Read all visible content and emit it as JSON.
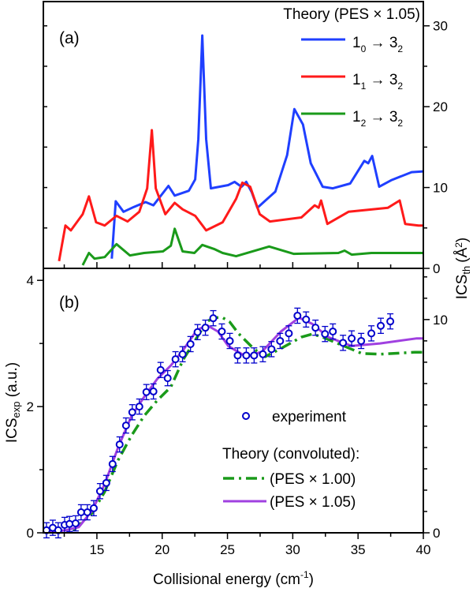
{
  "chart_data": [
    {
      "panel_label": "(a)",
      "type": "line",
      "xlabel": "",
      "ylabel_right": "ICS",
      "ylabel_right_sub": "th",
      "ylabel_right_unit": "(Å",
      "ylabel_right_unit_sup": "2",
      "ylabel_right_unit_close": ")",
      "xlim": [
        10.9,
        40
      ],
      "ylim_right": [
        0,
        33
      ],
      "yticks_right": [
        "0",
        "10",
        "20",
        "30"
      ],
      "legend_title": "Theory (PES × 1.05)",
      "legend_placement": "top-right",
      "series": [
        {
          "name": "1₀ → 3₂",
          "label_main": "1",
          "label_sub": "0",
          "label_arrow": "→ 3",
          "label_sub2": "2",
          "color": "#1f3fff",
          "x": [
            16.14,
            16.44,
            17.04,
            17.83,
            18.73,
            19.33,
            20.48,
            20.96,
            22.04,
            22.53,
            22.77,
            23.07,
            23.37,
            23.73,
            25.06,
            25.54,
            26.08,
            26.44,
            26.86,
            27.29,
            28.67,
            29.57,
            30.12,
            30.78,
            31.38,
            32.29,
            33.07,
            34.4,
            35.48,
            35.78,
            36.08,
            36.62,
            37.53,
            39.1,
            40
          ],
          "y": [
            1.2,
            8.3,
            7.0,
            7.6,
            8.2,
            7.8,
            10.2,
            9.0,
            9.6,
            11,
            16,
            28.8,
            16,
            9.9,
            10.3,
            10.7,
            10.1,
            10.7,
            9.4,
            7.5,
            9.5,
            14,
            19.7,
            17.8,
            13,
            10.1,
            9.9,
            10.5,
            13.3,
            13.0,
            13.9,
            10.1,
            10.9,
            11.9,
            12.0
          ]
        },
        {
          "name": "1₁ → 3₂",
          "label_main": "1",
          "label_sub": "1",
          "label_arrow": "→ 3",
          "label_sub2": "2",
          "color": "#ff1a1a",
          "x": [
            12.1,
            12.59,
            13.01,
            13.91,
            14.39,
            14.94,
            15.6,
            16.5,
            17.35,
            18.25,
            18.85,
            19.21,
            19.51,
            20.24,
            20.96,
            21.56,
            22.53,
            23.37,
            24.63,
            25.66,
            26.14,
            26.74,
            27.47,
            28.25,
            30.66,
            31.68,
            31.98,
            32.17,
            32.65,
            34.27,
            37.29,
            38.19,
            38.61,
            39.63,
            40
          ],
          "y": [
            0.9,
            5.3,
            4.7,
            6.7,
            8.9,
            5.7,
            5.3,
            6.5,
            5.8,
            7.0,
            9.9,
            17.1,
            9.9,
            6.7,
            8.1,
            7.3,
            6.5,
            4.7,
            5.7,
            8.6,
            10.6,
            10.1,
            6.7,
            5.8,
            6.3,
            7.8,
            7.5,
            8.4,
            5.5,
            7.0,
            7.5,
            8.4,
            5.5,
            5.3,
            5.3
          ]
        },
        {
          "name": "1₂ → 3₂",
          "label_main": "1",
          "label_sub": "2",
          "label_arrow": "→ 3",
          "label_sub2": "2",
          "color": "#1a9a1a",
          "x": [
            13.91,
            14.39,
            14.82,
            15.6,
            16.5,
            17.53,
            18.61,
            20.06,
            20.66,
            20.96,
            21.56,
            22.47,
            23.07,
            23.97,
            24.63,
            25.66,
            28.19,
            30.06,
            33.49,
            33.97,
            34.51,
            36.02,
            40
          ],
          "y": [
            0.4,
            1.9,
            1.2,
            1.4,
            3.0,
            1.6,
            1.9,
            2.1,
            2.8,
            4.9,
            2.1,
            1.9,
            2.9,
            2.4,
            1.9,
            1.5,
            2.7,
            1.8,
            1.9,
            2.2,
            1.7,
            1.9,
            1.9
          ]
        }
      ]
    },
    {
      "panel_label": "(b)",
      "type": "scatter+line",
      "xlabel": "Collisional energy (cm",
      "xlabel_sup": "-1",
      "xlabel_close": ")",
      "ylabel_left": "ICS",
      "ylabel_left_sub": "exp",
      "ylabel_left_unit": " (a.u.)",
      "xlim": [
        10.9,
        40
      ],
      "xticks": [
        "15",
        "20",
        "25",
        "30",
        "35",
        "40"
      ],
      "ylim_left": [
        0,
        4.19
      ],
      "yticks_left": [
        "0",
        "2",
        "4"
      ],
      "ylim_right": [
        0,
        12.4
      ],
      "yticks_right": [
        "0",
        "10"
      ],
      "legend_theory_title": "Theory (convoluted):",
      "legend_placement": "bottom-right",
      "experiment": {
        "name": "experiment",
        "color": "#0000cc",
        "x": [
          11.14,
          11.62,
          12.04,
          12.53,
          12.9,
          13.37,
          13.79,
          14.27,
          14.76,
          15.24,
          15.72,
          16.2,
          16.74,
          17.23,
          17.71,
          18.25,
          18.79,
          19.33,
          19.88,
          20.42,
          21.02,
          21.56,
          22.17,
          22.71,
          23.31,
          23.91,
          24.57,
          25.18,
          25.78,
          26.44,
          27.04,
          27.71,
          28.37,
          29.03,
          29.7,
          30.36,
          31.02,
          31.74,
          32.47,
          33.07,
          33.85,
          34.51,
          35.24,
          36.02,
          36.74,
          37.47
        ],
        "y": [
          0.04,
          0.08,
          0.04,
          0.125,
          0.14,
          0.15,
          0.325,
          0.325,
          0.39,
          0.66,
          0.79,
          1.09,
          1.4,
          1.7,
          1.91,
          2.0,
          2.23,
          2.24,
          2.58,
          2.45,
          2.75,
          2.83,
          2.99,
          3.18,
          3.25,
          3.4,
          3.19,
          3.04,
          2.81,
          2.81,
          2.81,
          2.83,
          2.91,
          3.04,
          3.16,
          3.44,
          3.38,
          3.25,
          3.15,
          3.19,
          3.01,
          3.08,
          3.04,
          3.16,
          3.28,
          3.35
        ],
        "yerr": 0.12
      },
      "series": [
        {
          "name": "(PES × 1.00)",
          "style": "dash-dot",
          "color": "#1a9a1a",
          "x": [
            13.19,
            14.63,
            15.6,
            16.62,
            17.65,
            18.61,
            19.63,
            20.66,
            21.62,
            22.65,
            23.43,
            24.03,
            24.63,
            25.18,
            25.84,
            27.04,
            27.89,
            29.27,
            30.66,
            31.5,
            32.29,
            33.91,
            35.3,
            36.68,
            39.33,
            40
          ],
          "y": [
            0.04,
            0.31,
            0.65,
            1.15,
            1.54,
            1.85,
            2.1,
            2.31,
            2.75,
            3.09,
            3.35,
            3.41,
            3.41,
            3.34,
            3.16,
            2.91,
            2.79,
            2.94,
            3.1,
            3.15,
            3.1,
            2.96,
            2.84,
            2.83,
            2.86,
            2.86
          ]
        },
        {
          "name": "(PES × 1.05)",
          "style": "solid",
          "color": "#a040e0",
          "x": [
            11.0,
            12.59,
            13.61,
            14.63,
            15.6,
            16.62,
            17.65,
            18.61,
            19.63,
            20.66,
            21.62,
            22.65,
            23.43,
            24.27,
            25.06,
            26.44,
            27.65,
            29.09,
            30.48,
            31.5,
            32.71,
            34.51,
            36.68,
            39.5,
            40
          ],
          "y": [
            0,
            0.04,
            0.09,
            0.35,
            0.77,
            1.35,
            1.85,
            2.15,
            2.44,
            2.65,
            2.9,
            3.21,
            3.29,
            3.19,
            2.96,
            2.79,
            2.87,
            3.19,
            3.41,
            3.31,
            3.1,
            2.96,
            3.0,
            3.08,
            3.08
          ]
        }
      ]
    }
  ]
}
